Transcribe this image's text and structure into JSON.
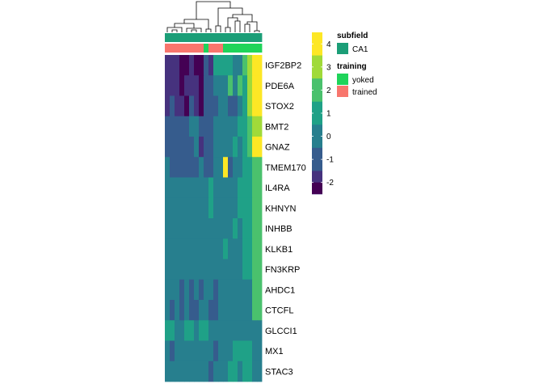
{
  "chart_data": {
    "type": "heatmap",
    "title": "",
    "columns": 20,
    "row_labels": [
      "IGF2BP2",
      "PDE6A",
      "STOX2",
      "BMT2",
      "GNAZ",
      "TMEM170",
      "IL4RA",
      "KHNYN",
      "INHBB",
      "KLKB1",
      "FN3KRP",
      "AHDC1",
      "CTCFL",
      "GLCCI1",
      "MX1",
      "STAC3"
    ],
    "values": [
      [
        -2,
        -2,
        -2,
        -3,
        -3,
        -2,
        -3,
        -3,
        -1,
        -2,
        1,
        1,
        1,
        1,
        0,
        0,
        2,
        3,
        4,
        4
      ],
      [
        -2,
        -2,
        -2,
        -3,
        -2,
        -2,
        -2,
        -3,
        -1,
        -1,
        0,
        0,
        0,
        2,
        0,
        2,
        1,
        3,
        4,
        4
      ],
      [
        -2,
        -1,
        -2,
        -2,
        -3,
        -1,
        -2,
        -3,
        -1,
        -1,
        -1,
        0,
        0,
        -1,
        -1,
        0,
        1,
        3,
        4,
        4
      ],
      [
        -1,
        -1,
        -1,
        -1,
        -1,
        0,
        0,
        -1,
        -1,
        -1,
        0,
        0,
        0,
        0,
        0,
        1,
        1,
        2,
        3,
        3
      ],
      [
        -1,
        -1,
        -1,
        -1,
        -1,
        -1,
        0,
        -2,
        -1,
        -1,
        0,
        0,
        0,
        0,
        1,
        0,
        1,
        2,
        4,
        4
      ],
      [
        0,
        -1,
        -1,
        -1,
        -1,
        -1,
        -1,
        0,
        -1,
        -1,
        0,
        0,
        4,
        -1,
        0,
        0,
        1,
        1,
        2,
        2
      ],
      [
        0,
        0,
        0,
        0,
        0,
        0,
        0,
        0,
        0,
        1,
        0,
        0,
        0,
        0,
        0,
        1,
        1,
        1,
        2,
        2
      ],
      [
        0,
        0,
        0,
        0,
        0,
        0,
        0,
        0,
        0,
        1,
        0,
        0,
        0,
        0,
        0,
        1,
        1,
        1,
        2,
        2
      ],
      [
        0,
        0,
        0,
        0,
        0,
        0,
        0,
        0,
        0,
        0,
        0,
        0,
        0,
        0,
        1,
        0,
        1,
        1,
        2,
        2
      ],
      [
        0,
        0,
        0,
        0,
        0,
        0,
        0,
        0,
        0,
        0,
        0,
        0,
        1,
        0,
        0,
        0,
        1,
        1,
        2,
        2
      ],
      [
        0,
        0,
        0,
        0,
        0,
        0,
        0,
        0,
        0,
        0,
        0,
        0,
        0,
        0,
        0,
        0,
        1,
        1,
        2,
        2
      ],
      [
        0,
        0,
        0,
        -1,
        0,
        -1,
        0,
        -1,
        0,
        0,
        -1,
        0,
        0,
        0,
        0,
        0,
        0,
        0,
        2,
        2
      ],
      [
        0,
        -1,
        0,
        -1,
        0,
        -1,
        -1,
        0,
        0,
        -1,
        -1,
        0,
        0,
        0,
        0,
        0,
        0,
        0,
        2,
        2
      ],
      [
        1,
        1,
        0,
        0,
        1,
        1,
        0,
        1,
        1,
        0,
        0,
        0,
        0,
        0,
        0,
        0,
        0,
        0,
        0,
        0
      ],
      [
        0,
        -1,
        0,
        0,
        0,
        0,
        0,
        0,
        0,
        0,
        -1,
        0,
        0,
        0,
        1,
        1,
        1,
        1,
        0,
        0
      ],
      [
        0,
        0,
        0,
        0,
        0,
        0,
        0,
        0,
        0,
        -1,
        0,
        0,
        0,
        1,
        1,
        0,
        1,
        1,
        0,
        0
      ]
    ],
    "column_annotations": {
      "subfield": [
        "CA1",
        "CA1",
        "CA1",
        "CA1",
        "CA1",
        "CA1",
        "CA1",
        "CA1",
        "CA1",
        "CA1",
        "CA1",
        "CA1",
        "CA1",
        "CA1",
        "CA1",
        "CA1",
        "CA1",
        "CA1",
        "CA1",
        "CA1"
      ],
      "training": [
        "trained",
        "trained",
        "trained",
        "trained",
        "trained",
        "trained",
        "trained",
        "trained",
        "yoked",
        "trained",
        "trained",
        "trained",
        "yoked",
        "yoked",
        "yoked",
        "yoked",
        "yoked",
        "yoked",
        "yoked",
        "yoked"
      ]
    },
    "colorbar": {
      "ticks": [
        4,
        3,
        2,
        1,
        0,
        -1,
        -2
      ],
      "min": -2.5,
      "max": 4.5,
      "bins": [
        {
          "v": 4.5,
          "color": "#FDE725"
        },
        {
          "v": 3.5,
          "color": "#A0DA39"
        },
        {
          "v": 2.5,
          "color": "#4AC16D"
        },
        {
          "v": 1.5,
          "color": "#1FA187"
        },
        {
          "v": 0.5,
          "color": "#277F8E"
        },
        {
          "v": -0.5,
          "color": "#365C8D"
        },
        {
          "v": -1.5,
          "color": "#46327E"
        },
        {
          "v": -2.5,
          "color": "#440154"
        }
      ]
    },
    "value_colors": {
      "4": "#FDE725",
      "3": "#A0DA39",
      "2": "#4AC16D",
      "1": "#1FA187",
      "0": "#277F8E",
      "-1": "#365C8D",
      "-2": "#46327E",
      "-3": "#440154"
    },
    "legend": {
      "subfield_title": "subfield",
      "subfield_items": [
        {
          "label": "CA1",
          "color": "#1B9E77"
        }
      ],
      "training_title": "training",
      "training_items": [
        {
          "label": "yoked",
          "color": "#1FD45A"
        },
        {
          "label": "trained",
          "color": "#F8766D"
        }
      ]
    },
    "annotation_colors": {
      "CA1": "#1B9E77",
      "yoked": "#1FD45A",
      "trained": "#F8766D"
    }
  }
}
